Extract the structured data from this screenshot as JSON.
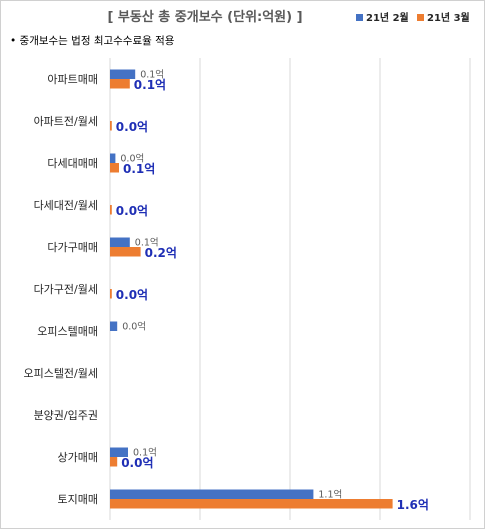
{
  "chart_data": {
    "type": "bar",
    "orientation": "horizontal",
    "title": "[ 부동산 총 중개보수 (단위:억원) ]",
    "note": "• 중개보수는 법정 최고수수료율 적용",
    "xlim": [
      0,
      2.0
    ],
    "grid": true,
    "legend_position": "top-right",
    "categories": [
      "아파트매매",
      "아파트전/월세",
      "다세대매매",
      "다세대전/월세",
      "다가구매매",
      "다가구전/월세",
      "오피스텔매매",
      "오피스텔전/월세",
      "분양권/입주권",
      "상가매매",
      "토지매매"
    ],
    "series": [
      {
        "name": "21년 2월",
        "color": "#4472c4",
        "values": [
          0.14,
          null,
          0.03,
          null,
          0.11,
          null,
          0.04,
          null,
          null,
          0.1,
          1.13
        ],
        "labels": [
          "0.1억",
          "",
          "0.0억",
          "",
          "0.1억",
          "",
          "0.0억",
          "",
          "",
          "0.1억",
          "1.1억"
        ]
      },
      {
        "name": "21년 3월",
        "color": "#ed7d31",
        "values": [
          0.11,
          0.01,
          0.05,
          0.01,
          0.17,
          0.01,
          null,
          null,
          null,
          0.04,
          1.57
        ],
        "labels": [
          "0.1억",
          "0.0억",
          "0.1억",
          "0.0억",
          "0.2억",
          "0.0억",
          "",
          "",
          "",
          "0.0억",
          "1.6억"
        ]
      }
    ]
  }
}
